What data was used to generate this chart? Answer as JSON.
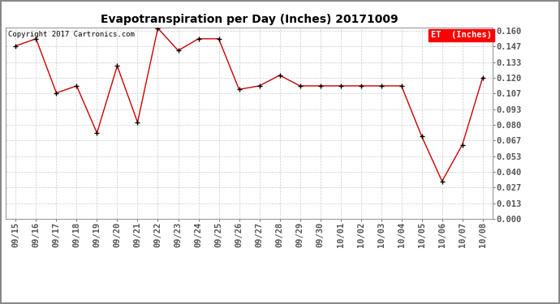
{
  "title": "Evapotranspiration per Day (Inches) 20171009",
  "copyright": "Copyright 2017 Cartronics.com",
  "legend_label": "ET  (Inches)",
  "dates": [
    "09/15",
    "09/16",
    "09/17",
    "09/18",
    "09/19",
    "09/20",
    "09/21",
    "09/22",
    "09/23",
    "09/24",
    "09/25",
    "09/26",
    "09/27",
    "09/28",
    "09/29",
    "09/30",
    "10/01",
    "10/02",
    "10/03",
    "10/04",
    "10/05",
    "10/06",
    "10/07",
    "10/08"
  ],
  "values": [
    0.147,
    0.153,
    0.107,
    0.113,
    0.073,
    0.13,
    0.082,
    0.162,
    0.143,
    0.153,
    0.153,
    0.11,
    0.113,
    0.122,
    0.113,
    0.113,
    0.113,
    0.113,
    0.113,
    0.113,
    0.07,
    0.032,
    0.063,
    0.12
  ],
  "line_color": "#cc0000",
  "marker_color": "#000000",
  "background_color": "#ffffff",
  "grid_color": "#cccccc",
  "title_fontsize": 10,
  "tick_fontsize": 7.5,
  "copyright_fontsize": 6.5,
  "ylim": [
    0.0,
    0.1627
  ],
  "yticks": [
    0.0,
    0.013,
    0.027,
    0.04,
    0.053,
    0.067,
    0.08,
    0.093,
    0.107,
    0.12,
    0.133,
    0.147,
    0.16
  ],
  "legend_bg": "#ff0000",
  "legend_text_color": "#ffffff",
  "legend_fontsize": 7.5,
  "outer_border_color": "#888888"
}
